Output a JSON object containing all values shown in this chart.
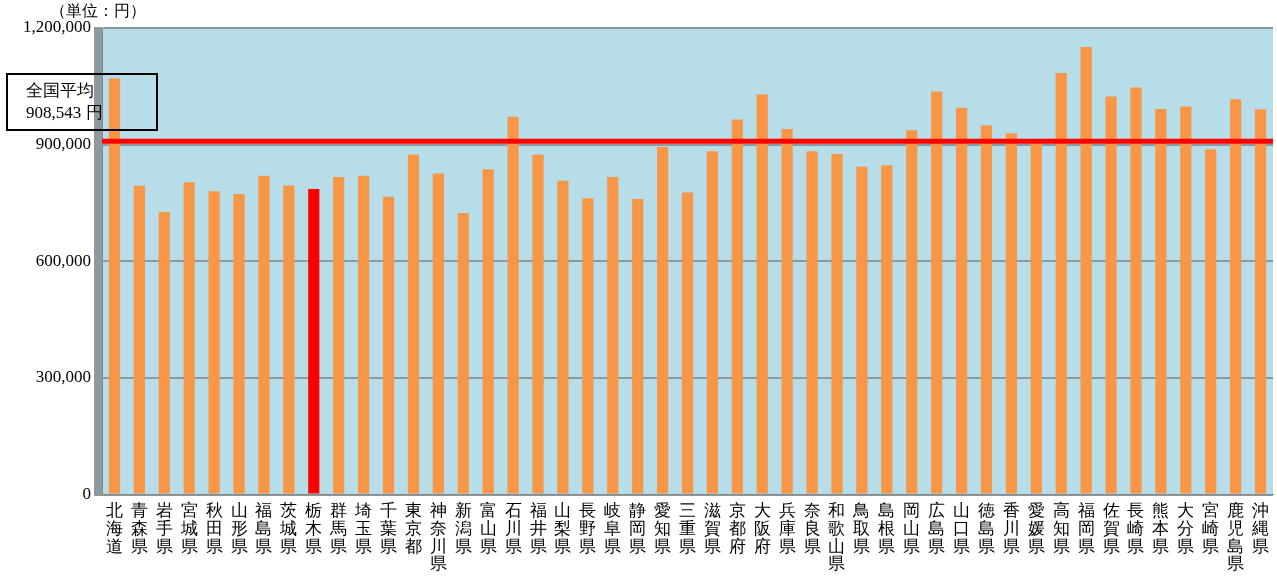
{
  "chart_data": {
    "type": "bar",
    "categories": [
      "北海道",
      "青森県",
      "岩手県",
      "宮城県",
      "秋田県",
      "山形県",
      "福島県",
      "茨城県",
      "栃木県",
      "群馬県",
      "埼玉県",
      "千葉県",
      "東京都",
      "神奈川県",
      "新潟県",
      "富山県",
      "石川県",
      "福井県",
      "山梨県",
      "長野県",
      "岐阜県",
      "静岡県",
      "愛知県",
      "三重県",
      "滋賀県",
      "京都府",
      "大阪府",
      "兵庫県",
      "奈良県",
      "和歌山県",
      "鳥取県",
      "島根県",
      "岡山県",
      "広島県",
      "山口県",
      "徳島県",
      "香川県",
      "愛媛県",
      "高知県",
      "福岡県",
      "佐賀県",
      "長崎県",
      "熊本県",
      "大分県",
      "宮崎県",
      "鹿児島県",
      "沖縄県"
    ],
    "values": [
      1070000,
      794000,
      727000,
      803000,
      780000,
      773000,
      820000,
      795000,
      786000,
      817000,
      820000,
      766000,
      874000,
      826000,
      724000,
      837000,
      972000,
      874000,
      807000,
      762000,
      817000,
      760000,
      894000,
      777000,
      883000,
      965000,
      1029000,
      940000,
      883000,
      876000,
      843000,
      847000,
      937000,
      1037000,
      995000,
      950000,
      929000,
      902000,
      1084000,
      1151000,
      1024000,
      1047000,
      992000,
      998000,
      888000,
      1017000,
      991000
    ],
    "colors": [
      "#f79646",
      "#f79646",
      "#f79646",
      "#f79646",
      "#f79646",
      "#f79646",
      "#f79646",
      "#f79646",
      "#ff0000",
      "#f79646",
      "#f79646",
      "#f79646",
      "#f79646",
      "#f79646",
      "#f79646",
      "#f79646",
      "#f79646",
      "#f79646",
      "#f79646",
      "#f79646",
      "#f79646",
      "#f79646",
      "#f79646",
      "#f79646",
      "#f79646",
      "#f79646",
      "#f79646",
      "#f79646",
      "#f79646",
      "#f79646",
      "#f79646",
      "#f79646",
      "#f79646",
      "#f79646",
      "#f79646",
      "#f79646",
      "#f79646",
      "#f79646",
      "#f79646",
      "#f79646",
      "#f79646",
      "#f79646",
      "#f79646",
      "#f79646",
      "#f79646",
      "#f79646",
      "#f79646"
    ],
    "ylim": [
      0,
      1200000
    ],
    "yticks": [
      {
        "value": 0,
        "label": "0"
      },
      {
        "value": 300000,
        "label": "300,000"
      },
      {
        "value": 600000,
        "label": "600,000"
      },
      {
        "value": 900000,
        "label": "900,000"
      },
      {
        "value": 1200000,
        "label": "1,200,000"
      }
    ],
    "grid": "y",
    "legend": false,
    "ref_lines": [
      {
        "axis": "y",
        "value": 908543,
        "label": "全国平均\n908,543 円",
        "color": "#ff0000"
      }
    ],
    "annotations": [
      "（単位：円）"
    ]
  }
}
